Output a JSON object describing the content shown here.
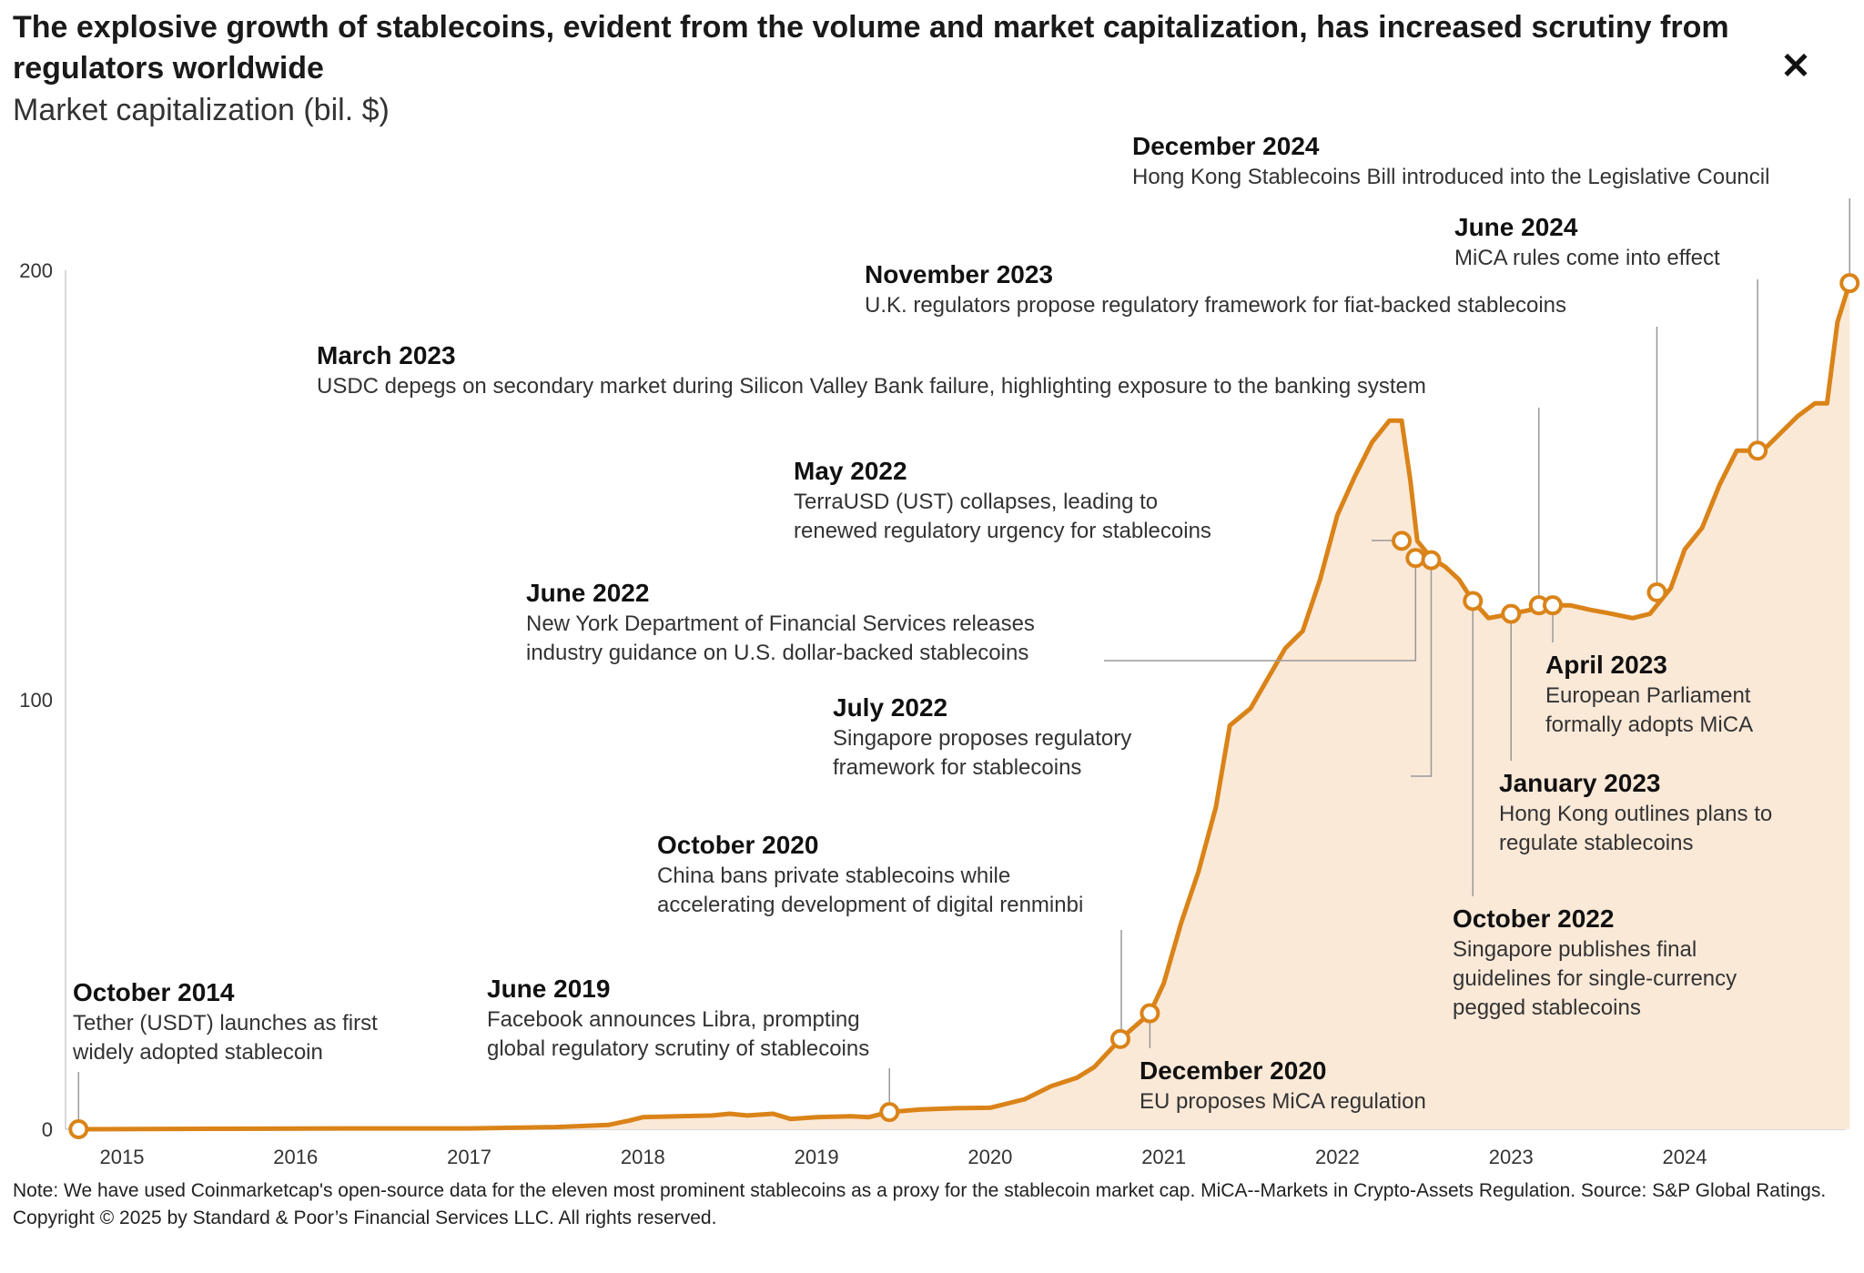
{
  "header": {
    "title": "The explosive growth of stablecoins, evident from the volume and market capitalization, has increased scrutiny from regulators worldwide",
    "subtitle": "Market capitalization (bil. $)",
    "close_label": "✕"
  },
  "notes": {
    "note": "Note: We have used Coinmarketcap's open-source data for the eleven most prominent stablecoins as a proxy for the stablecoin market cap. MiCA--Markets in Crypto-Assets Regulation. Source: S&P Global Ratings.",
    "copyright": "Copyright © 2025 by Standard & Poor’s Financial Services LLC. All rights reserved."
  },
  "colors": {
    "line": "#DA8318",
    "area": "#FBE9D8",
    "leader": "#999999",
    "axis": "#cccccc"
  },
  "chart_data": {
    "type": "area",
    "x_unit": "year",
    "ylim": [
      0,
      200
    ],
    "xlim": [
      2014.75,
      2024.95
    ],
    "y_ticks": [
      0,
      100,
      200
    ],
    "x_ticks": [
      "2015",
      "2016",
      "2017",
      "2018",
      "2019",
      "2020",
      "2021",
      "2022",
      "2023",
      "2024"
    ],
    "grid": false,
    "series": [
      {
        "points": [
          [
            2014.75,
            0
          ],
          [
            2015.5,
            0.1
          ],
          [
            2016.5,
            0.2
          ],
          [
            2017.0,
            0.2
          ],
          [
            2017.5,
            0.5
          ],
          [
            2017.8,
            1.0
          ],
          [
            2017.92,
            2.0
          ],
          [
            2018.0,
            2.8
          ],
          [
            2018.2,
            3.0
          ],
          [
            2018.4,
            3.2
          ],
          [
            2018.5,
            3.6
          ],
          [
            2018.6,
            3.2
          ],
          [
            2018.75,
            3.6
          ],
          [
            2018.85,
            2.4
          ],
          [
            2019.0,
            2.8
          ],
          [
            2019.2,
            3.0
          ],
          [
            2019.3,
            2.8
          ],
          [
            2019.42,
            4.0
          ],
          [
            2019.6,
            4.6
          ],
          [
            2019.8,
            4.9
          ],
          [
            2020.0,
            5.0
          ],
          [
            2020.2,
            7.0
          ],
          [
            2020.35,
            10.0
          ],
          [
            2020.5,
            12.0
          ],
          [
            2020.6,
            14.5
          ],
          [
            2020.75,
            21.0
          ],
          [
            2020.92,
            27.0
          ],
          [
            2021.0,
            34.0
          ],
          [
            2021.1,
            48.0
          ],
          [
            2021.2,
            60.0
          ],
          [
            2021.3,
            75.0
          ],
          [
            2021.38,
            94.0
          ],
          [
            2021.5,
            98.0
          ],
          [
            2021.6,
            105.0
          ],
          [
            2021.7,
            112.0
          ],
          [
            2021.8,
            116.0
          ],
          [
            2021.9,
            128.0
          ],
          [
            2022.0,
            143.0
          ],
          [
            2022.1,
            152.0
          ],
          [
            2022.2,
            160.0
          ],
          [
            2022.3,
            165.0
          ],
          [
            2022.37,
            165.0
          ],
          [
            2022.42,
            151.0
          ],
          [
            2022.46,
            137.0
          ],
          [
            2022.54,
            133.0
          ],
          [
            2022.62,
            131.0
          ],
          [
            2022.7,
            128.0
          ],
          [
            2022.78,
            123.0
          ],
          [
            2022.87,
            119.0
          ],
          [
            2023.0,
            120.0
          ],
          [
            2023.12,
            121.0
          ],
          [
            2023.24,
            122.0
          ],
          [
            2023.34,
            122.0
          ],
          [
            2023.45,
            121.0
          ],
          [
            2023.58,
            120.0
          ],
          [
            2023.7,
            119.0
          ],
          [
            2023.8,
            120.0
          ],
          [
            2023.92,
            126.0
          ],
          [
            2024.0,
            135.0
          ],
          [
            2024.1,
            140.0
          ],
          [
            2024.2,
            150.0
          ],
          [
            2024.3,
            158.0
          ],
          [
            2024.45,
            158.0
          ],
          [
            2024.55,
            162.0
          ],
          [
            2024.65,
            166.0
          ],
          [
            2024.75,
            169.0
          ],
          [
            2024.82,
            169.0
          ],
          [
            2024.88,
            188.0
          ],
          [
            2024.95,
            197.0
          ]
        ]
      }
    ],
    "events": [
      {
        "x": 2014.75,
        "y": 0,
        "head": "October 2014",
        "lines": [
          "Tether (USDT) launches as first",
          "widely adopted stablecoin"
        ]
      },
      {
        "x": 2019.42,
        "y": 4.0,
        "head": "June 2019",
        "lines": [
          "Facebook announces Libra, prompting",
          "global regulatory scrutiny of stablecoins"
        ]
      },
      {
        "x": 2020.75,
        "y": 21.0,
        "head": "October 2020",
        "lines": [
          "China bans private stablecoins while",
          "accelerating development of digital renminbi"
        ]
      },
      {
        "x": 2020.92,
        "y": 27.0,
        "head": "December 2020",
        "lines": [
          "EU proposes MiCA regulation"
        ]
      },
      {
        "x": 2022.37,
        "y": 137.0,
        "head": "May 2022",
        "lines": [
          "TerraUSD (UST) collapses, leading to",
          "renewed regulatory urgency for stablecoins"
        ]
      },
      {
        "x": 2022.45,
        "y": 133.0,
        "head": "June 2022",
        "lines": [
          "New York Department of Financial Services releases",
          "industry guidance on U.S. dollar-backed stablecoins"
        ]
      },
      {
        "x": 2022.54,
        "y": 132.5,
        "head": "July 2022",
        "lines": [
          "Singapore proposes regulatory",
          "framework for stablecoins"
        ]
      },
      {
        "x": 2022.78,
        "y": 123.0,
        "head": "October 2022",
        "lines": [
          "Singapore publishes final",
          "guidelines for single-currency",
          "pegged stablecoins"
        ]
      },
      {
        "x": 2023.0,
        "y": 120.0,
        "head": "January 2023",
        "lines": [
          "Hong Kong outlines plans to",
          "regulate stablecoins"
        ]
      },
      {
        "x": 2023.16,
        "y": 122.0,
        "head": "March 2023",
        "lines": [
          "USDC depegs on secondary market during Silicon Valley Bank failure, highlighting exposure to the banking system"
        ]
      },
      {
        "x": 2023.24,
        "y": 122.0,
        "head": "April 2023",
        "lines": [
          "European Parliament",
          "formally adopts MiCA"
        ]
      },
      {
        "x": 2023.84,
        "y": 125.0,
        "head": "November 2023",
        "lines": [
          "U.K. regulators propose regulatory framework for fiat-backed stablecoins"
        ]
      },
      {
        "x": 2024.42,
        "y": 158.0,
        "head": "June 2024",
        "lines": [
          "MiCA rules come into effect"
        ]
      },
      {
        "x": 2024.95,
        "y": 197.0,
        "head": "December 2024",
        "lines": [
          "Hong Kong Stablecoins Bill introduced into the Legislative Council"
        ]
      }
    ]
  }
}
